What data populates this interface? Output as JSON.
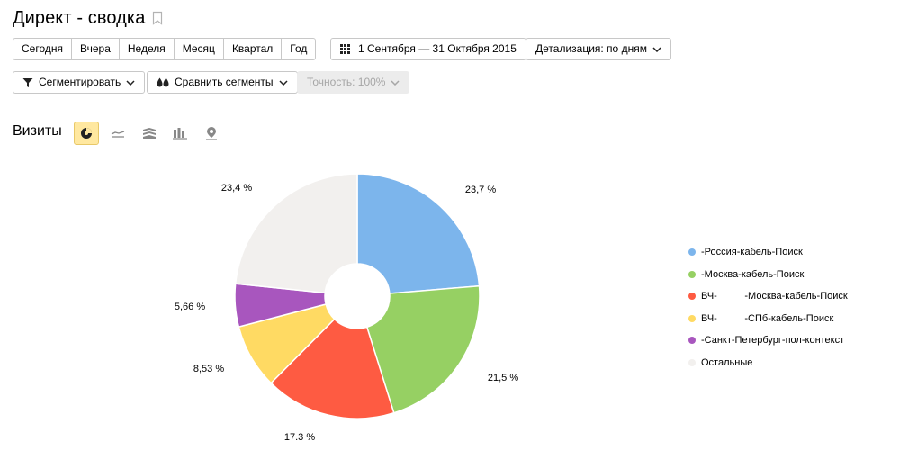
{
  "page": {
    "title": "Директ - сводка"
  },
  "period_buttons": [
    "Сегодня",
    "Вчера",
    "Неделя",
    "Месяц",
    "Квартал",
    "Год"
  ],
  "date_range": "1 Сентября — 31 Октября 2015",
  "detail": "Детализация: по дням",
  "segment_button": "Сегментировать",
  "compare_button": "Сравнить сегменты",
  "accuracy": "Точность: 100%",
  "section": {
    "label": "Визиты",
    "views": [
      "pie-chart-icon",
      "line-chart-icon",
      "area-chart-icon",
      "bar-chart-icon",
      "map-icon"
    ],
    "active_view": "pie-chart-icon"
  },
  "chart_data": {
    "type": "pie",
    "donut": true,
    "categories": [
      "-Россия-кабель-Поиск",
      "-Москва-кабель-Поиск",
      "ВЧ-          -Москва-кабель-Поиск",
      "ВЧ-          -СПб-кабель-Поиск",
      "-Санкт-Петербург-пол-контекст",
      "Остальные"
    ],
    "values": [
      23.7,
      21.5,
      17.3,
      8.53,
      5.66,
      23.4
    ],
    "value_labels": [
      "23,7 %",
      "21,5 %",
      "17.3 %",
      "8,53 %",
      "5,66 %",
      "23,4 %"
    ],
    "colors": [
      "#7cb5ec",
      "#96d063",
      "#fe5b42",
      "#ffda63",
      "#a856be",
      "#f2f0ee"
    ],
    "legend_placement": "right"
  }
}
